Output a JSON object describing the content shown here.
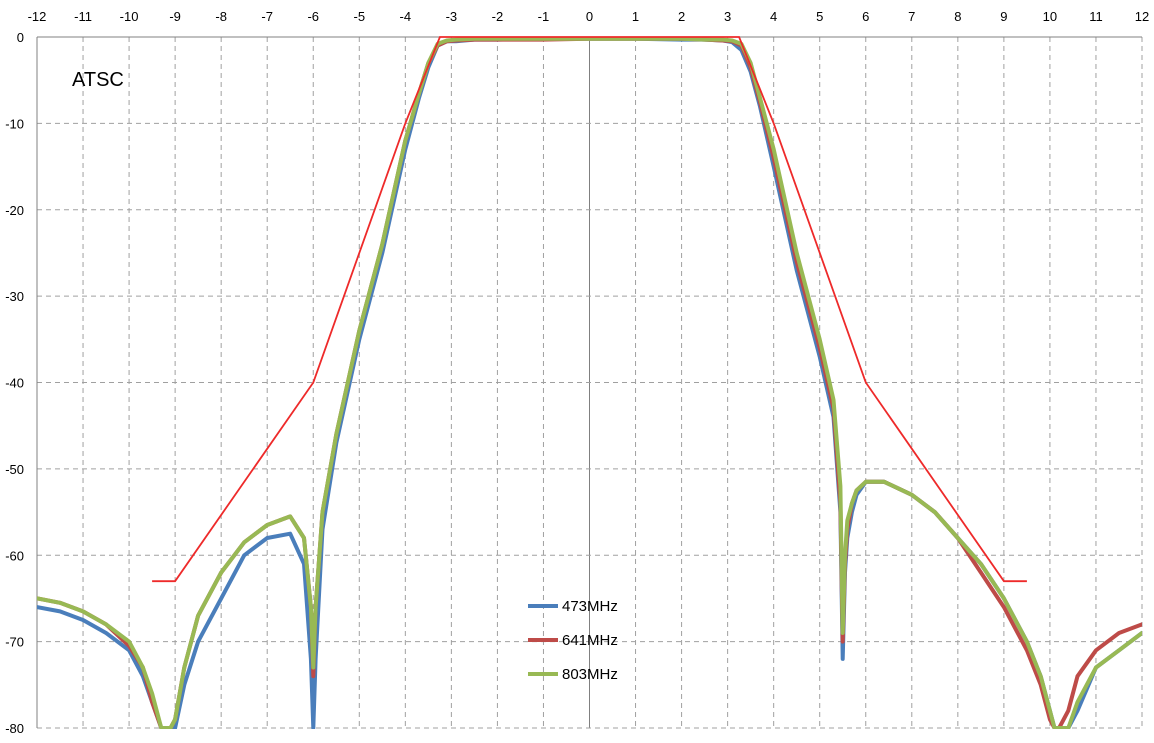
{
  "chart_data": {
    "type": "line",
    "title": "",
    "annotation": "ATSC",
    "xlabel": "",
    "ylabel": "",
    "xlim": [
      -12,
      12
    ],
    "ylim": [
      -80,
      0
    ],
    "x_ticks": [
      -12,
      -11,
      -10,
      -9,
      -8,
      -7,
      -6,
      -5,
      -4,
      -3,
      -2,
      -1,
      0,
      1,
      2,
      3,
      4,
      5,
      6,
      7,
      8,
      9,
      10,
      11,
      12
    ],
    "y_ticks": [
      0,
      -10,
      -20,
      -30,
      -40,
      -50,
      -60,
      -70,
      -80
    ],
    "x_axis_position": "top",
    "grid": true,
    "grid_style": "dashed",
    "legend_position": "bottom-center",
    "colors": {
      "mask": "#ee2a2a",
      "473MHz": "#4a7ebb",
      "641MHz": "#be4b48",
      "803MHz": "#98b954",
      "grid": "#a0a0a0",
      "axis": "#808080"
    },
    "mask": {
      "x": [
        -9.5,
        -9,
        -6,
        -4,
        -3.25,
        -3.25,
        3.25,
        3.25,
        4,
        6,
        9,
        9.5
      ],
      "y": [
        -63,
        -63,
        -40,
        -10,
        0,
        0,
        0,
        0,
        -10,
        -40,
        -63,
        -63
      ]
    },
    "series": [
      {
        "name": "473MHz",
        "x": [
          -12,
          -11.5,
          -11,
          -10.5,
          -10,
          -9.7,
          -9.5,
          -9.3,
          -9.2,
          -9.1,
          -9.0,
          -8.8,
          -8.5,
          -8.0,
          -7.5,
          -7.0,
          -6.5,
          -6.2,
          -6.05,
          -6.0,
          -5.95,
          -5.8,
          -5.5,
          -5.0,
          -4.5,
          -4.0,
          -3.7,
          -3.5,
          -3.3,
          -3.1,
          -2.9,
          -2.5,
          -2,
          -1,
          0,
          1,
          2,
          2.5,
          2.9,
          3.1,
          3.3,
          3.5,
          3.7,
          4.0,
          4.5,
          5.0,
          5.3,
          5.45,
          5.5,
          5.55,
          5.6,
          5.7,
          5.8,
          6.0,
          6.4,
          7.0,
          7.5,
          8.0,
          8.5,
          9.0,
          9.5,
          9.8,
          10.0,
          10.1,
          10.2,
          10.4,
          10.6,
          11.0,
          11.5,
          12
        ],
        "y": [
          -66,
          -66.5,
          -67.5,
          -69,
          -71,
          -74,
          -77,
          -80,
          -80,
          -80,
          -80,
          -75,
          -70,
          -65,
          -60,
          -58,
          -57.5,
          -61,
          -72,
          -80,
          -72,
          -57,
          -47,
          -35,
          -25,
          -13,
          -7,
          -3.5,
          -1,
          -0.5,
          -0.5,
          -0.3,
          -0.3,
          -0.2,
          -0.2,
          -0.2,
          -0.3,
          -0.3,
          -0.4,
          -0.6,
          -1.5,
          -4,
          -8,
          -15,
          -27,
          -37,
          -44,
          -55,
          -72,
          -62,
          -58,
          -55,
          -53,
          -51.5,
          -51.5,
          -53,
          -55,
          -58,
          -61,
          -65,
          -70,
          -74,
          -78,
          -80,
          -80,
          -80,
          -78,
          -73,
          -71,
          -69
        ]
      },
      {
        "name": "641MHz",
        "x": [
          -12,
          -11.5,
          -11,
          -10.5,
          -10,
          -9.7,
          -9.5,
          -9.3,
          -9.2,
          -9.1,
          -9.0,
          -8.8,
          -8.5,
          -8.0,
          -7.5,
          -7.0,
          -6.5,
          -6.2,
          -6.05,
          -6.0,
          -5.95,
          -5.8,
          -5.5,
          -5.0,
          -4.5,
          -4.0,
          -3.7,
          -3.5,
          -3.3,
          -3.1,
          -2.9,
          -2.5,
          -2,
          -1,
          0,
          1,
          2,
          2.5,
          2.9,
          3.1,
          3.3,
          3.5,
          3.7,
          4.0,
          4.5,
          5.0,
          5.3,
          5.45,
          5.5,
          5.55,
          5.6,
          5.7,
          5.8,
          6.0,
          6.4,
          7.0,
          7.5,
          8.0,
          8.5,
          9.0,
          9.5,
          9.8,
          10.0,
          10.1,
          10.2,
          10.4,
          10.6,
          11.0,
          11.5,
          12
        ],
        "y": [
          -65,
          -65.5,
          -66.5,
          -68,
          -70.5,
          -73,
          -77,
          -80,
          -80,
          -80,
          -79,
          -73,
          -67,
          -62,
          -58.5,
          -56.5,
          -55.5,
          -58,
          -66,
          -74,
          -66,
          -55,
          -46,
          -34,
          -24,
          -12,
          -6.5,
          -3,
          -1,
          -0.5,
          -0.4,
          -0.3,
          -0.3,
          -0.3,
          -0.2,
          -0.2,
          -0.2,
          -0.3,
          -0.4,
          -0.5,
          -1,
          -3.5,
          -7.5,
          -14,
          -26,
          -36,
          -43,
          -54,
          -70,
          -61,
          -57,
          -54,
          -52.5,
          -51.5,
          -51.5,
          -53,
          -55,
          -58,
          -62,
          -66,
          -71,
          -75,
          -79,
          -80,
          -80,
          -78,
          -74,
          -71,
          -69,
          -68
        ]
      },
      {
        "name": "803MHz",
        "x": [
          -12,
          -11.5,
          -11,
          -10.5,
          -10,
          -9.7,
          -9.5,
          -9.3,
          -9.2,
          -9.1,
          -9.0,
          -8.8,
          -8.5,
          -8.0,
          -7.5,
          -7.0,
          -6.5,
          -6.2,
          -6.05,
          -6.0,
          -5.95,
          -5.8,
          -5.5,
          -5.0,
          -4.5,
          -4.0,
          -3.7,
          -3.5,
          -3.3,
          -3.1,
          -2.9,
          -2.5,
          -2,
          -1,
          0,
          1,
          2,
          2.5,
          2.9,
          3.1,
          3.3,
          3.5,
          3.7,
          4.0,
          4.5,
          5.0,
          5.3,
          5.45,
          5.5,
          5.55,
          5.6,
          5.7,
          5.8,
          6.0,
          6.4,
          7.0,
          7.5,
          8.0,
          8.5,
          9.0,
          9.5,
          9.8,
          10.0,
          10.1,
          10.2,
          10.4,
          10.6,
          11.0,
          11.5,
          12
        ],
        "y": [
          -65,
          -65.5,
          -66.5,
          -68,
          -70,
          -73,
          -76,
          -80,
          -80,
          -80,
          -79,
          -73,
          -67,
          -62,
          -58.5,
          -56.5,
          -55.5,
          -58,
          -66,
          -73,
          -66,
          -55,
          -46,
          -34,
          -24,
          -12,
          -6.5,
          -3,
          -0.8,
          -0.4,
          -0.3,
          -0.2,
          -0.2,
          -0.2,
          -0.2,
          -0.2,
          -0.2,
          -0.3,
          -0.3,
          -0.4,
          -0.8,
          -3,
          -7,
          -13,
          -25,
          -35,
          -42,
          -52,
          -69,
          -60,
          -56,
          -54,
          -52.5,
          -51.5,
          -51.5,
          -53,
          -55,
          -58,
          -61,
          -65,
          -70,
          -74,
          -78,
          -80,
          -80,
          -80,
          -77,
          -73,
          -71,
          -69
        ]
      }
    ]
  }
}
